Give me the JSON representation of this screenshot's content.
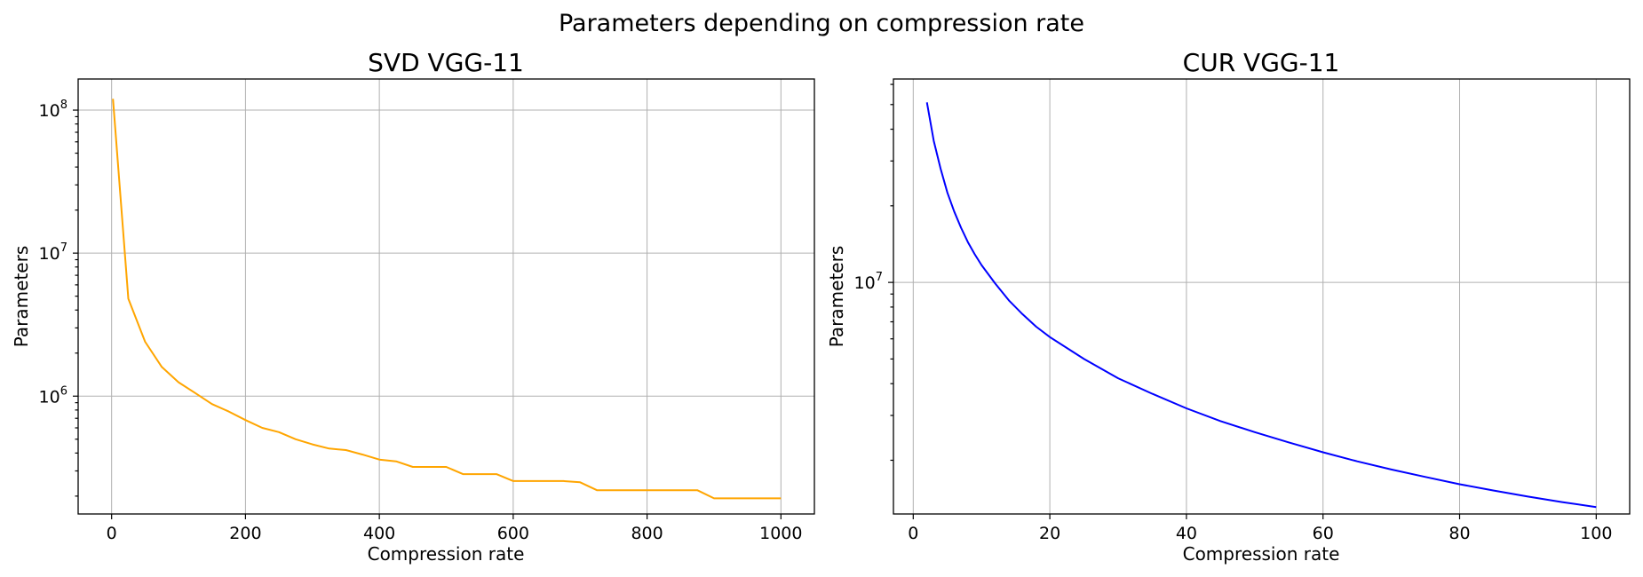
{
  "figure_title": "Parameters depending on compression rate",
  "chart_data": [
    {
      "type": "line",
      "title": "SVD VGG-11",
      "xlabel": "Compression rate",
      "ylabel": "Parameters",
      "xscale": "linear",
      "yscale": "log",
      "xlim": [
        -50,
        1050
      ],
      "ylim": [
        150000,
        165000000
      ],
      "xticks": [
        0,
        200,
        400,
        600,
        800,
        1000
      ],
      "xtick_labels": [
        "0",
        "200",
        "400",
        "600",
        "800",
        "1000"
      ],
      "yticks": [
        1000000,
        10000000,
        100000000
      ],
      "ytick_labels": [
        [
          "10",
          "6"
        ],
        [
          "10",
          "7"
        ],
        [
          "10",
          "8"
        ]
      ],
      "grid": true,
      "series": [
        {
          "color": "#ffa500",
          "x": [
            2,
            25,
            50,
            75,
            100,
            125,
            150,
            175,
            200,
            225,
            250,
            275,
            300,
            325,
            350,
            375,
            400,
            425,
            450,
            475,
            500,
            525,
            550,
            575,
            600,
            625,
            650,
            675,
            700,
            725,
            750,
            775,
            800,
            825,
            850,
            875,
            900,
            925,
            950,
            975,
            1000
          ],
          "y": [
            120000000,
            4800000,
            2400000,
            1600000,
            1250000,
            1050000,
            880000,
            780000,
            680000,
            600000,
            560000,
            500000,
            460000,
            430000,
            420000,
            390000,
            360000,
            350000,
            320000,
            320000,
            320000,
            285000,
            285000,
            285000,
            255000,
            255000,
            255000,
            255000,
            250000,
            220000,
            220000,
            220000,
            220000,
            220000,
            220000,
            220000,
            193000,
            193000,
            193000,
            193000,
            193000
          ]
        }
      ]
    },
    {
      "type": "line",
      "title": "CUR VGG-11",
      "xlabel": "Compression rate",
      "ylabel": "Parameters",
      "xscale": "linear",
      "yscale": "log",
      "xlim": [
        -2.9,
        104.9
      ],
      "ylim": [
        1230000,
        63000000
      ],
      "xticks": [
        0,
        20,
        40,
        60,
        80,
        100
      ],
      "xtick_labels": [
        "0",
        "20",
        "40",
        "60",
        "80",
        "100"
      ],
      "yticks": [
        10000000
      ],
      "ytick_labels": [
        [
          "10",
          "7"
        ]
      ],
      "grid": true,
      "series": [
        {
          "color": "#0000ff",
          "x": [
            2,
            3,
            4,
            5,
            6,
            7,
            8,
            9,
            10,
            12,
            14,
            16,
            18,
            20,
            25,
            30,
            35,
            40,
            45,
            50,
            55,
            60,
            65,
            70,
            75,
            80,
            85,
            90,
            95,
            100
          ],
          "y": [
            51000000,
            36000000,
            28000000,
            22500000,
            19000000,
            16400000,
            14400000,
            12900000,
            11700000,
            9900000,
            8500000,
            7500000,
            6700000,
            6100000,
            5000000,
            4200000,
            3650000,
            3200000,
            2850000,
            2580000,
            2350000,
            2150000,
            1980000,
            1840000,
            1720000,
            1610000,
            1520000,
            1440000,
            1370000,
            1310000
          ]
        }
      ]
    }
  ]
}
